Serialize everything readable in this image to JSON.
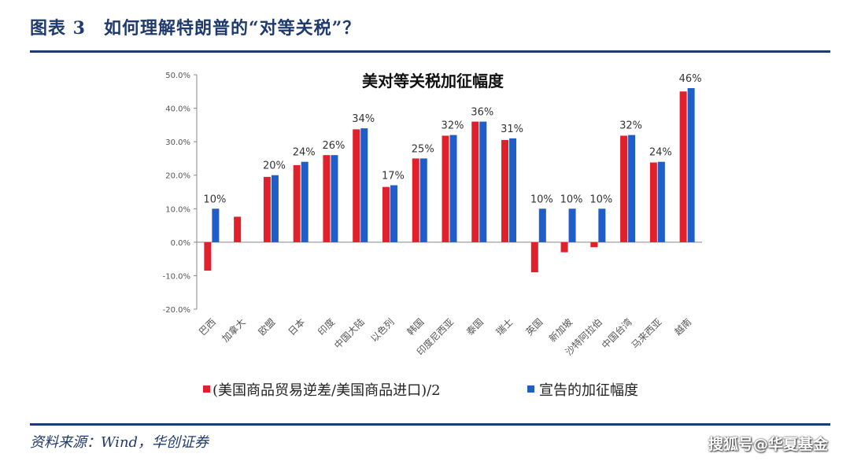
{
  "header": {
    "title": "图表 3　如何理解特朗普的“对等关税”？"
  },
  "footer": {
    "source": "资料来源：Wind，华创证券",
    "watermark": "搜狐号@华夏基金"
  },
  "colors": {
    "series_1": "#e0202a",
    "series_2": "#1f5ec8",
    "rule": "#1f3a6e"
  },
  "chart_data": {
    "type": "bar",
    "title": "美对等关税加征幅度",
    "categories": [
      "巴西",
      "加拿大",
      "欧盟",
      "日本",
      "印度",
      "中国大陆",
      "以色列",
      "韩国",
      "印度尼西亚",
      "泰国",
      "瑞士",
      "英国",
      "新加坡",
      "沙特阿拉伯",
      "中国台湾",
      "马来西亚",
      "越南"
    ],
    "series": [
      {
        "name": "(美国商品贸易逆差/美国商品进口)/2",
        "values": [
          -8.5,
          7.6,
          19.5,
          23,
          26,
          33.7,
          16.5,
          25,
          31.8,
          36,
          30.5,
          -9,
          -3,
          -1.5,
          31.8,
          23.8,
          45
        ]
      },
      {
        "name": "宣告的加征幅度",
        "values": [
          10,
          null,
          20,
          24,
          26,
          34,
          17,
          25,
          32,
          36,
          31,
          10,
          10,
          10,
          32,
          24,
          46
        ]
      }
    ],
    "data_labels": [
      "10%",
      "",
      "20%",
      "24%",
      "26%",
      "34%",
      "17%",
      "25%",
      "32%",
      "36%",
      "31%",
      "10%",
      "10%",
      "10%",
      "32%",
      "24%",
      "46%"
    ],
    "yticks": [
      "50.0%",
      "40.0%",
      "30.0%",
      "20.0%",
      "10.0%",
      "0.0%",
      "-10.0%",
      "-20.0%"
    ],
    "ylim": [
      -20,
      50
    ],
    "legend_position": "bottom"
  }
}
